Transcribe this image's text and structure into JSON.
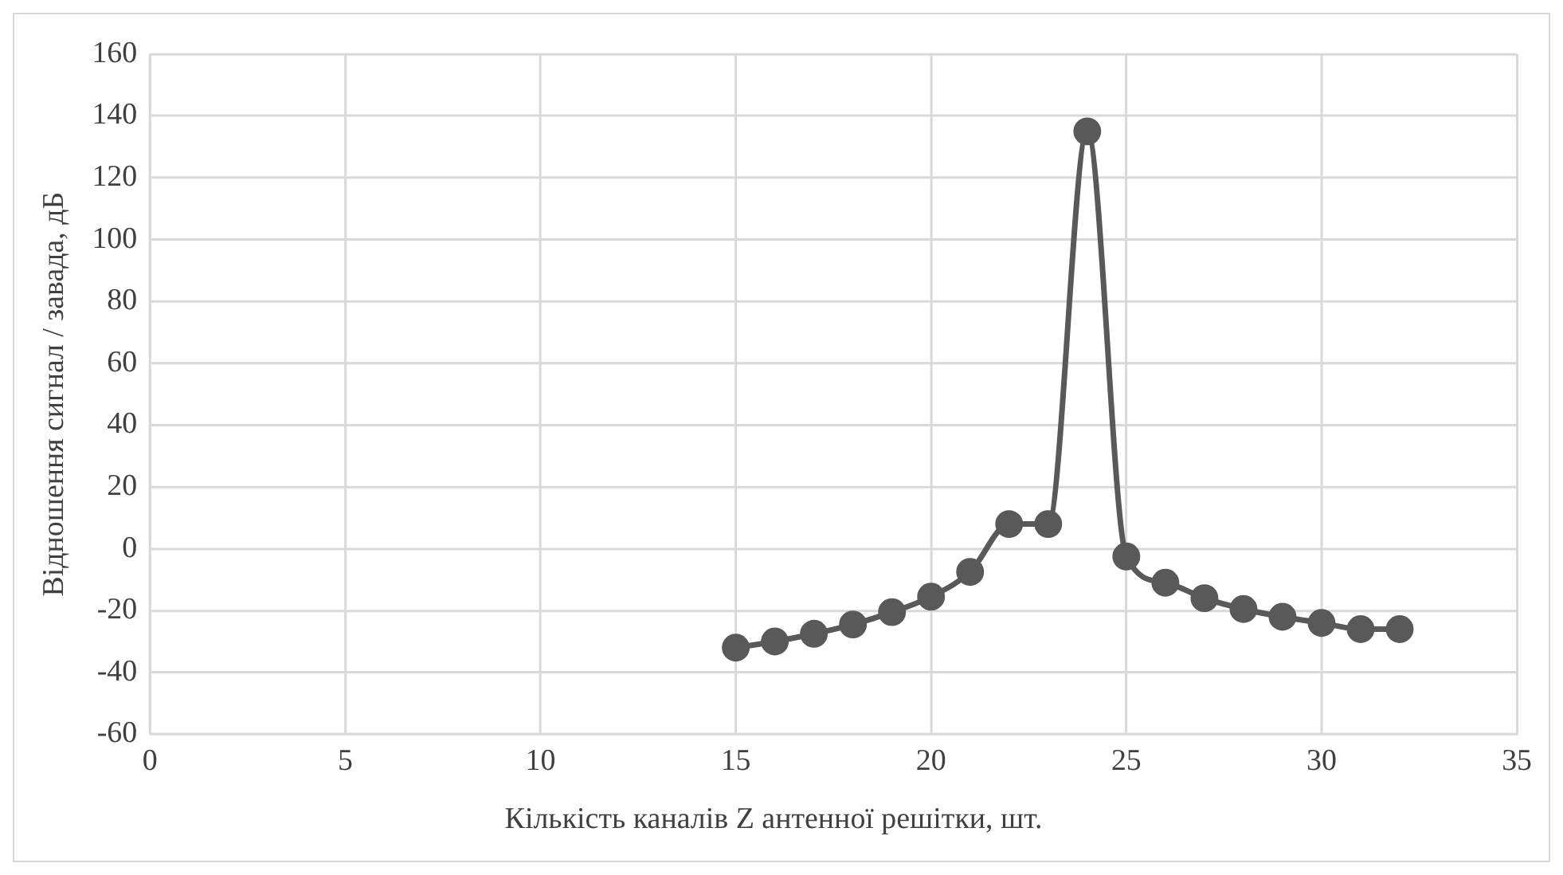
{
  "chart_data": {
    "type": "line",
    "xlabel": "Кількість каналів Z антенної решітки, шт.",
    "ylabel": "Відношення сигнал / завада, дБ",
    "x": [
      15,
      16,
      17,
      18,
      19,
      20,
      21,
      22,
      23,
      24,
      25,
      26,
      27,
      28,
      29,
      30,
      31,
      32
    ],
    "series": [
      {
        "color": "#595959",
        "values": [
          -32,
          -30,
          -27.5,
          -24.5,
          -20.5,
          -15.5,
          -7.5,
          8,
          8,
          135,
          -2.5,
          -11,
          -16,
          -19.5,
          -22,
          -24,
          -26,
          -26
        ]
      }
    ],
    "xlim": [
      0,
      35
    ],
    "xticks": [
      0,
      5,
      10,
      15,
      20,
      25,
      30,
      35
    ],
    "ylim": [
      -60,
      160
    ],
    "yticks": [
      -60,
      -40,
      -20,
      0,
      20,
      40,
      60,
      80,
      100,
      120,
      140,
      160
    ],
    "grid": true,
    "marker": "circle",
    "line_style": "solid"
  }
}
